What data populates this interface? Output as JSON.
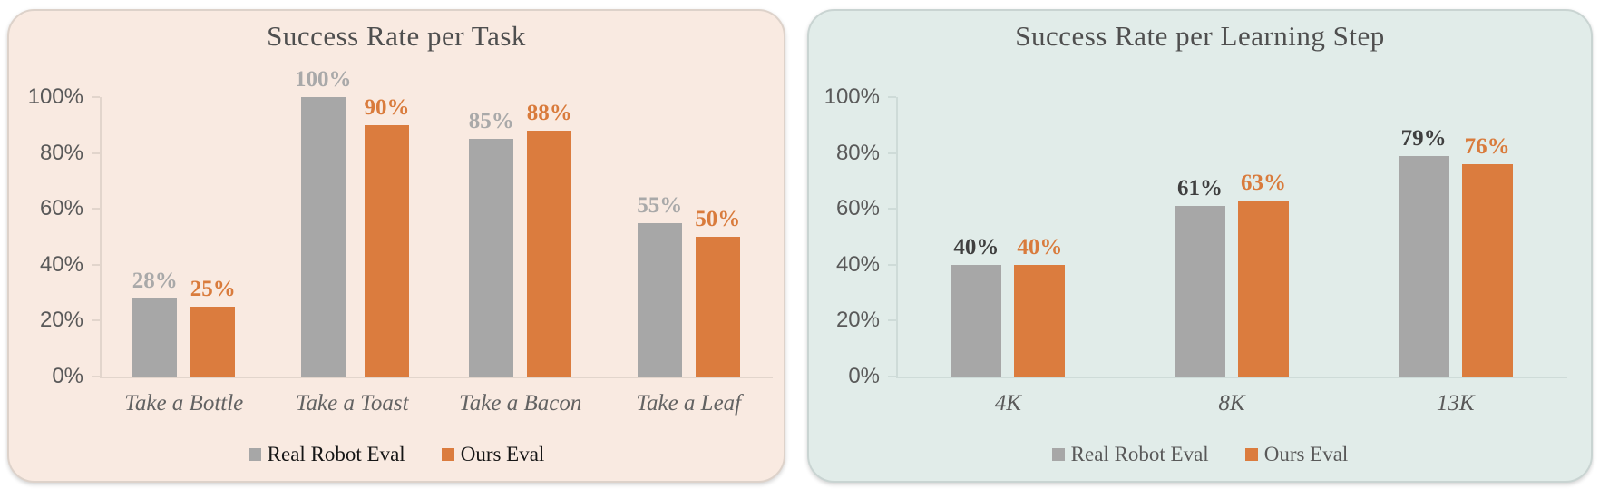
{
  "chart_data": [
    {
      "type": "bar",
      "title": "Success Rate per Task",
      "title_color": "#4F4F4F",
      "panel_bg": "#F9EAE1",
      "categories": [
        "Take a Bottle",
        "Take a Toast",
        "Take a Bacon",
        "Take a Leaf"
      ],
      "category_color": "#626262",
      "series": [
        {
          "name": "Real Robot Eval",
          "color": "#A7A7A7",
          "label_color": "#A9A9A9",
          "values": [
            28,
            100,
            85,
            55
          ],
          "labels": [
            "28%",
            "100%",
            "85%",
            "55%"
          ]
        },
        {
          "name": "Ours Eval",
          "color": "#DB7C3E",
          "label_color": "#D97B3C",
          "values": [
            25,
            90,
            88,
            50
          ],
          "labels": [
            "25%",
            "90%",
            "88%",
            "50%"
          ]
        }
      ],
      "y_axis": {
        "max": 100,
        "min": 0,
        "label_color": "#595959",
        "ticks": [
          {
            "value": 0,
            "label": "0%"
          },
          {
            "value": 20,
            "label": "20%"
          },
          {
            "value": 40,
            "label": "40%"
          },
          {
            "value": 60,
            "label": "60%"
          },
          {
            "value": 80,
            "label": "80%"
          },
          {
            "value": 100,
            "label": "100%"
          }
        ]
      },
      "grid": false,
      "legend_position": "bottom",
      "legend_text_color": "#161616"
    },
    {
      "type": "bar",
      "title": "Success Rate per Learning Step",
      "title_color": "#4F4F4F",
      "panel_bg": "#E1ECE9",
      "categories": [
        "4K",
        "8K",
        "13K"
      ],
      "category_color": "#595959",
      "series": [
        {
          "name": "Real Robot Eval",
          "color": "#A7A7A7",
          "label_color": "#3F3F3F",
          "values": [
            40,
            61,
            79
          ],
          "labels": [
            "40%",
            "61%",
            "79%"
          ]
        },
        {
          "name": "Ours Eval",
          "color": "#DB7C3E",
          "label_color": "#D97B3C",
          "values": [
            40,
            63,
            76
          ],
          "labels": [
            "40%",
            "63%",
            "76%"
          ]
        }
      ],
      "y_axis": {
        "max": 100,
        "min": 0,
        "label_color": "#595959",
        "ticks": [
          {
            "value": 0,
            "label": "0%"
          },
          {
            "value": 20,
            "label": "20%"
          },
          {
            "value": 40,
            "label": "40%"
          },
          {
            "value": 60,
            "label": "60%"
          },
          {
            "value": 80,
            "label": "80%"
          },
          {
            "value": 100,
            "label": "100%"
          }
        ]
      },
      "grid": false,
      "legend_position": "bottom",
      "legend_text_color": "#595959"
    }
  ]
}
